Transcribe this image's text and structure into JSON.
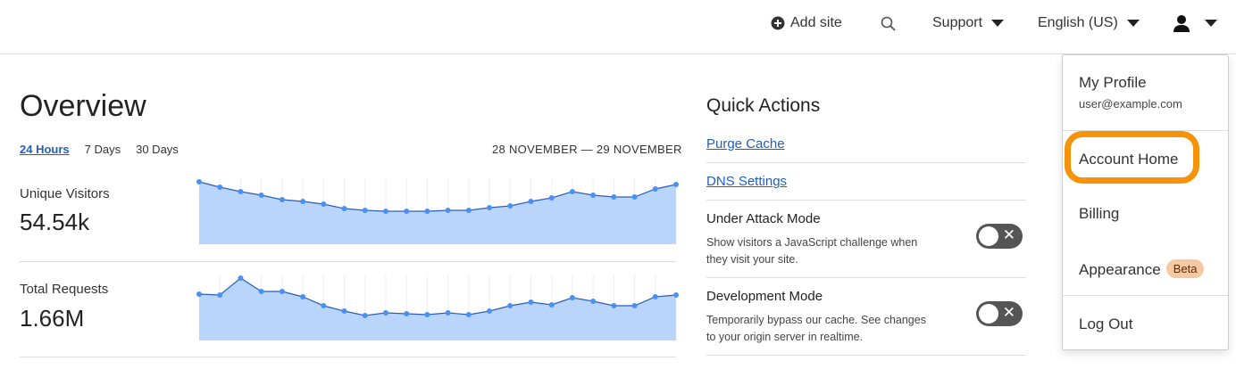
{
  "header": {
    "add_site": "Add site",
    "support": "Support",
    "language": "English (US)",
    "icons": {
      "add": "plus-circle-icon",
      "search": "search-icon",
      "user": "user-icon"
    }
  },
  "overview": {
    "title": "Overview",
    "tabs": [
      "24 Hours",
      "7 Days",
      "30 Days"
    ],
    "active_tab": "24 Hours",
    "range": "28 NOVEMBER — 29 NOVEMBER"
  },
  "metrics": [
    {
      "label": "Unique Visitors",
      "value": "54.54k"
    },
    {
      "label": "Total Requests",
      "value": "1.66M"
    }
  ],
  "chart_data": [
    {
      "type": "area",
      "series": [
        {
          "values": [
            70,
            64,
            59,
            55,
            50,
            48,
            45,
            40,
            38,
            37,
            37,
            37,
            38,
            38,
            41,
            43,
            48,
            52,
            59,
            55,
            53,
            53,
            62,
            67
          ]
        }
      ],
      "ylim": [
        0,
        74
      ],
      "color": "#4a90f0",
      "fill": "#b9d5fb",
      "grid": "vertical"
    },
    {
      "type": "area",
      "series": [
        {
          "values": [
            52,
            51,
            70,
            55,
            55,
            49,
            39,
            33,
            28,
            31,
            30,
            29,
            31,
            29,
            33,
            39,
            43,
            40,
            48,
            44,
            39,
            39,
            49,
            51
          ]
        }
      ],
      "ylim": [
        0,
        74
      ],
      "color": "#4a90f0",
      "fill": "#b9d5fb",
      "grid": "vertical"
    }
  ],
  "quick": {
    "title": "Quick Actions",
    "links": [
      "Purge Cache",
      "DNS Settings"
    ],
    "toggles": [
      {
        "title": "Under Attack Mode",
        "desc": "Show visitors a JavaScript challenge when they visit your site.",
        "on": false
      },
      {
        "title": "Development Mode",
        "desc": "Temporarily bypass our cache. See changes to your origin server in realtime.",
        "on": false
      }
    ]
  },
  "menu": {
    "profile": "My Profile",
    "email": "user@example.com",
    "account_home": "Account Home",
    "billing": "Billing",
    "appearance": "Appearance",
    "badge": "Beta",
    "logout": "Log Out",
    "highlight_color": "#f6930b"
  }
}
